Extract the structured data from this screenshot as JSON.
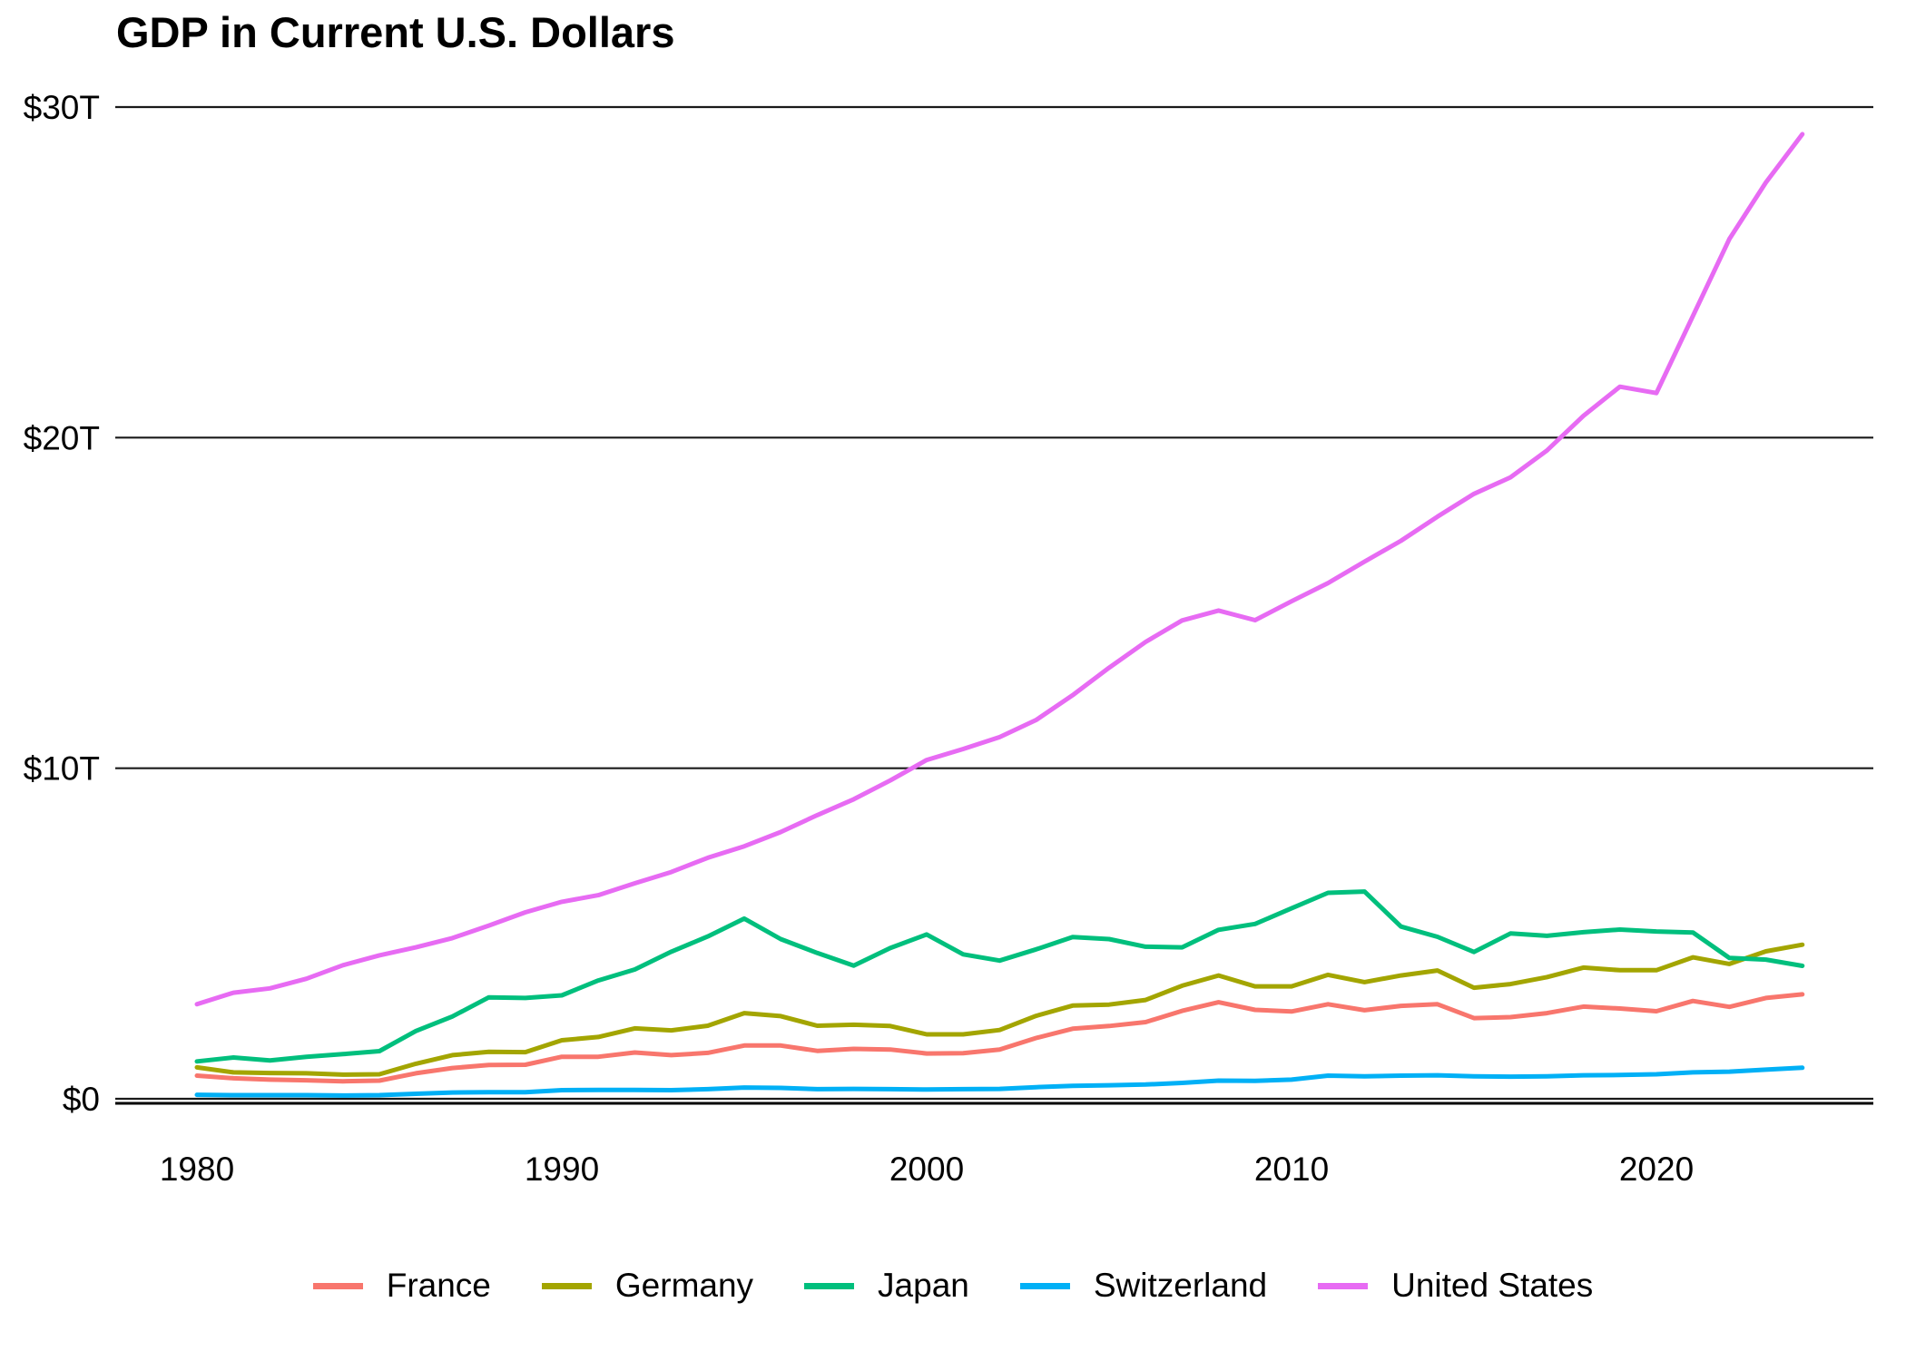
{
  "title": "GDP in Current U.S. Dollars",
  "colors": {
    "france": "#F8766D",
    "germany": "#A3A500",
    "japan": "#00BF7D",
    "switzerland": "#00B0F6",
    "united_states": "#E76BF3",
    "gridline": "#1a1a1a",
    "axis": "#000000",
    "text": "#000000",
    "background": "#FFFFFF"
  },
  "chart_data": {
    "type": "line",
    "title": "GDP in Current U.S. Dollars",
    "xlabel": "",
    "ylabel": "",
    "xlim": [
      1980,
      2024
    ],
    "ylim": [
      0,
      30
    ],
    "grid": "horizontal-major",
    "legend_position": "bottom",
    "xticks": [
      1980,
      1990,
      2000,
      2010,
      2020
    ],
    "xtick_labels": [
      "1980",
      "1990",
      "2000",
      "2010",
      "2020"
    ],
    "yticks": [
      0,
      10,
      20,
      30
    ],
    "ytick_labels": [
      "$0",
      "$10T",
      "$20T",
      "$30T"
    ],
    "y_unit": "trillions of current U.S. dollars",
    "x": [
      1980,
      1981,
      1982,
      1983,
      1984,
      1985,
      1986,
      1987,
      1988,
      1989,
      1990,
      1991,
      1992,
      1993,
      1994,
      1995,
      1996,
      1997,
      1998,
      1999,
      2000,
      2001,
      2002,
      2003,
      2004,
      2005,
      2006,
      2007,
      2008,
      2009,
      2010,
      2011,
      2012,
      2013,
      2014,
      2015,
      2016,
      2017,
      2018,
      2019,
      2020,
      2021,
      2022,
      2023,
      2024
    ],
    "series": [
      {
        "name": "France",
        "color": "#F8766D",
        "values": [
          0.7,
          0.62,
          0.58,
          0.56,
          0.53,
          0.55,
          0.77,
          0.93,
          1.02,
          1.03,
          1.27,
          1.27,
          1.4,
          1.32,
          1.39,
          1.61,
          1.61,
          1.45,
          1.51,
          1.49,
          1.37,
          1.38,
          1.49,
          1.84,
          2.12,
          2.2,
          2.32,
          2.66,
          2.92,
          2.69,
          2.64,
          2.86,
          2.68,
          2.81,
          2.86,
          2.44,
          2.47,
          2.59,
          2.79,
          2.73,
          2.65,
          2.96,
          2.78,
          3.05,
          3.16
        ]
      },
      {
        "name": "Germany",
        "color": "#A3A500",
        "values": [
          0.95,
          0.8,
          0.78,
          0.77,
          0.73,
          0.74,
          1.06,
          1.32,
          1.42,
          1.41,
          1.77,
          1.87,
          2.13,
          2.07,
          2.21,
          2.59,
          2.5,
          2.21,
          2.24,
          2.2,
          1.95,
          1.95,
          2.08,
          2.51,
          2.82,
          2.85,
          2.99,
          3.42,
          3.73,
          3.4,
          3.4,
          3.75,
          3.53,
          3.73,
          3.88,
          3.36,
          3.47,
          3.68,
          3.97,
          3.89,
          3.89,
          4.28,
          4.08,
          4.46,
          4.66
        ]
      },
      {
        "name": "Japan",
        "color": "#00BF7D",
        "values": [
          1.13,
          1.25,
          1.16,
          1.27,
          1.35,
          1.44,
          2.05,
          2.49,
          3.07,
          3.05,
          3.13,
          3.58,
          3.91,
          4.45,
          4.91,
          5.45,
          4.83,
          4.41,
          4.03,
          4.56,
          4.97,
          4.37,
          4.18,
          4.52,
          4.89,
          4.83,
          4.6,
          4.58,
          5.11,
          5.29,
          5.76,
          6.23,
          6.27,
          5.21,
          4.9,
          4.44,
          5.0,
          4.93,
          5.04,
          5.12,
          5.06,
          5.03,
          4.26,
          4.21,
          4.02
        ]
      },
      {
        "name": "Switzerland",
        "color": "#00B0F6",
        "values": [
          0.12,
          0.11,
          0.11,
          0.11,
          0.1,
          0.11,
          0.15,
          0.19,
          0.2,
          0.2,
          0.26,
          0.27,
          0.27,
          0.26,
          0.29,
          0.34,
          0.33,
          0.29,
          0.3,
          0.29,
          0.28,
          0.29,
          0.3,
          0.35,
          0.39,
          0.41,
          0.43,
          0.48,
          0.55,
          0.54,
          0.58,
          0.7,
          0.68,
          0.7,
          0.71,
          0.68,
          0.67,
          0.68,
          0.71,
          0.72,
          0.74,
          0.8,
          0.82,
          0.88,
          0.94
        ]
      },
      {
        "name": "United States",
        "color": "#E76BF3",
        "values": [
          2.86,
          3.21,
          3.34,
          3.63,
          4.04,
          4.34,
          4.58,
          4.86,
          5.24,
          5.64,
          5.96,
          6.16,
          6.52,
          6.86,
          7.29,
          7.64,
          8.07,
          8.58,
          9.06,
          9.63,
          10.25,
          10.58,
          10.94,
          11.46,
          12.21,
          13.04,
          13.82,
          14.47,
          14.77,
          14.48,
          15.05,
          15.6,
          16.25,
          16.88,
          17.61,
          18.3,
          18.8,
          19.61,
          20.66,
          21.54,
          21.35,
          23.68,
          26.01,
          27.72,
          29.18
        ]
      }
    ]
  }
}
